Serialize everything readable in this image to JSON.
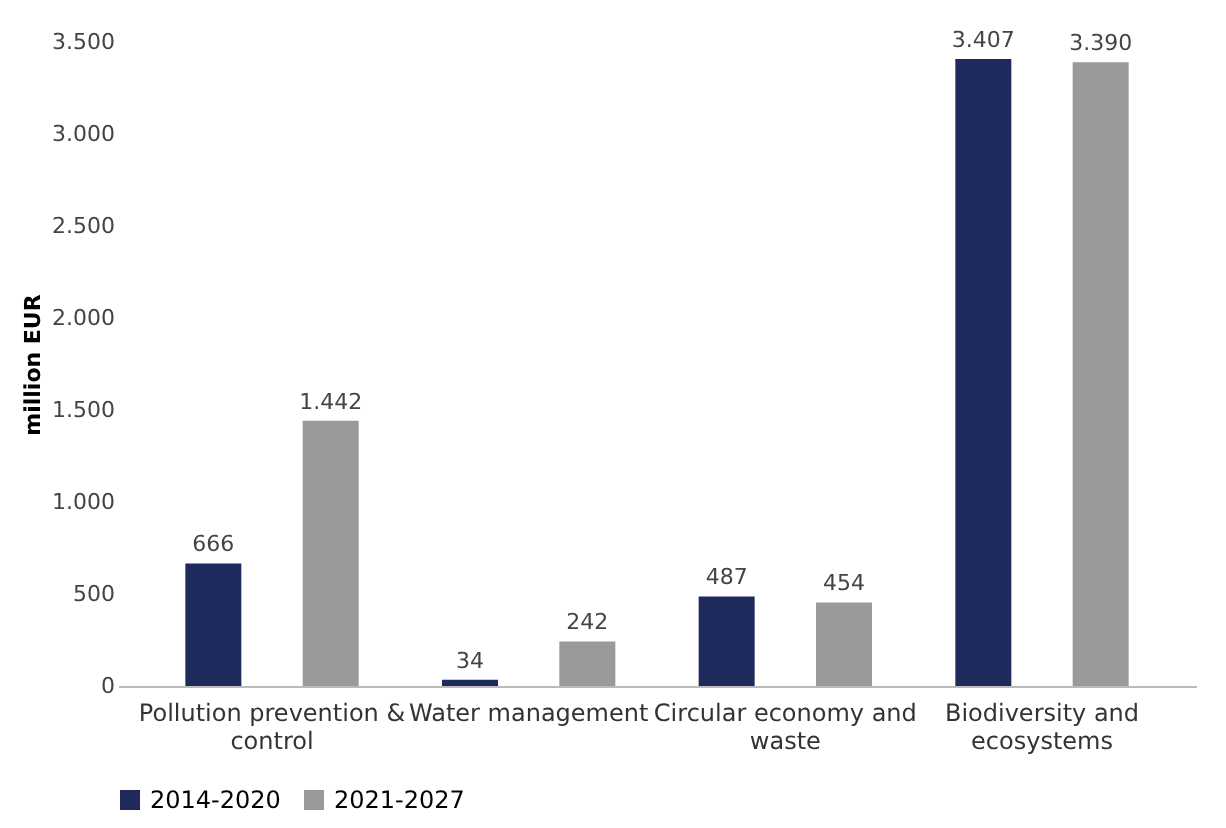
{
  "chart_data": {
    "type": "bar",
    "ylabel": "million EUR",
    "categories": [
      "Pollution prevention & control",
      "Water management",
      "Circular economy and waste",
      "Biodiversity and ecosystems"
    ],
    "series": [
      {
        "name": "2014-2020",
        "color": "#1f2a5c",
        "values": [
          666,
          34,
          487,
          3407
        ],
        "value_labels": [
          "666",
          "34",
          "487",
          "3.407"
        ]
      },
      {
        "name": "2021-2027",
        "color": "#9a9a9a",
        "values": [
          1442,
          242,
          454,
          3390
        ],
        "value_labels": [
          "1.442",
          "242",
          "454",
          "3.390"
        ]
      }
    ],
    "ylim": [
      0,
      3500
    ],
    "yticks": [
      0,
      {
        "value": 500,
        "label": "500"
      },
      {
        "value": 1000,
        "label": "1.000"
      },
      {
        "value": 1500,
        "label": "1.500"
      },
      {
        "value": 2000,
        "label": "2.000"
      },
      {
        "value": 2500,
        "label": "2.500"
      },
      {
        "value": 3000,
        "label": "3.000"
      },
      {
        "value": 3500,
        "label": "3.500"
      }
    ],
    "grid": false,
    "legend": "bottom"
  }
}
